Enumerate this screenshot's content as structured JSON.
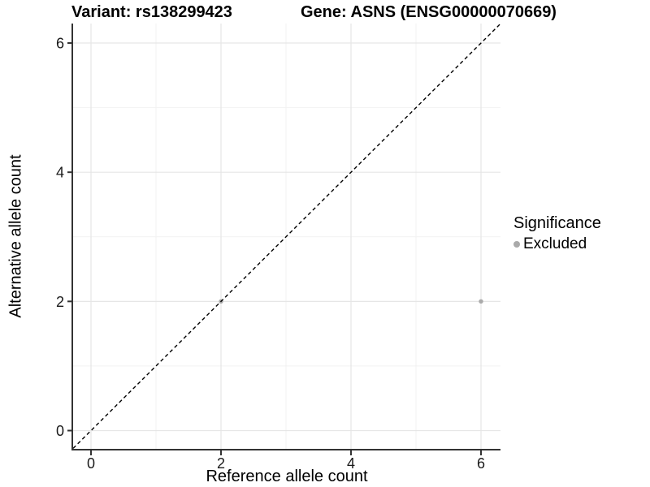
{
  "title": {
    "variant": "Variant: rs138299423",
    "gene": "Gene: ASNS (ENSG00000070669)"
  },
  "chart_data": {
    "type": "scatter",
    "title": "Variant: rs138299423    Gene: ASNS (ENSG00000070669)",
    "xlabel": "Reference allele count",
    "ylabel": "Alternative allele count",
    "xlim": [
      -0.3,
      6.3
    ],
    "ylim": [
      -0.3,
      6.3
    ],
    "x_ticks": [
      0,
      2,
      4,
      6
    ],
    "y_ticks": [
      0,
      2,
      4,
      6
    ],
    "x_minor_ticks": [
      1,
      3,
      5
    ],
    "y_minor_ticks": [
      1,
      3,
      5
    ],
    "grid": "on",
    "series": [
      {
        "name": "Excluded",
        "marker": "circle",
        "color": "#aaaaaa",
        "points": [
          [
            2,
            2
          ],
          [
            6,
            2
          ]
        ]
      }
    ],
    "reference_line": {
      "slope": 1,
      "intercept": 0,
      "style": "dashed",
      "color": "#000000"
    },
    "legend": {
      "title": "Significance",
      "position": "right",
      "items": [
        {
          "label": "Excluded",
          "color": "#aaaaaa"
        }
      ]
    },
    "colors": {
      "background": "#ffffff",
      "grid_major": "#e6e6e6",
      "grid_minor": "#f2f2f2",
      "axis": "#333333",
      "tick_text": "#1a1a1a"
    }
  }
}
